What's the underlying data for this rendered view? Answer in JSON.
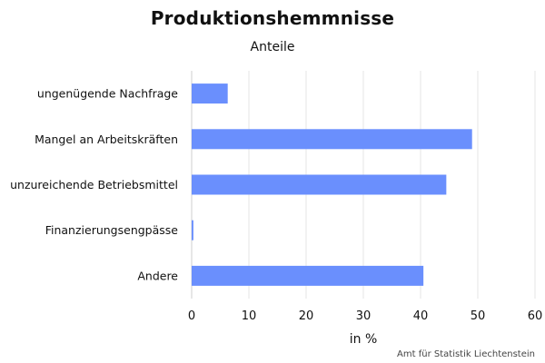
{
  "chart_data": {
    "type": "bar",
    "orientation": "horizontal",
    "title": "Produktionshemmnisse",
    "subtitle": "Anteile",
    "categories": [
      "ungenügende Nachfrage",
      "Mangel an Arbeitskräften",
      "unzureichende Betriebsmittel",
      "Finanzierungsengpässe",
      "Andere"
    ],
    "values": [
      6.3,
      49.0,
      44.5,
      0.3,
      40.5
    ],
    "xlabel": "in %",
    "ylabel": "",
    "xlim": [
      0,
      60
    ],
    "xticks": [
      0,
      10,
      20,
      30,
      40,
      50,
      60
    ],
    "grid": "vertical",
    "legend": "none",
    "bar_color": "#6a8ffd",
    "grid_color": "#e6e6e6",
    "source": "Amt für Statistik Liechtenstein"
  }
}
